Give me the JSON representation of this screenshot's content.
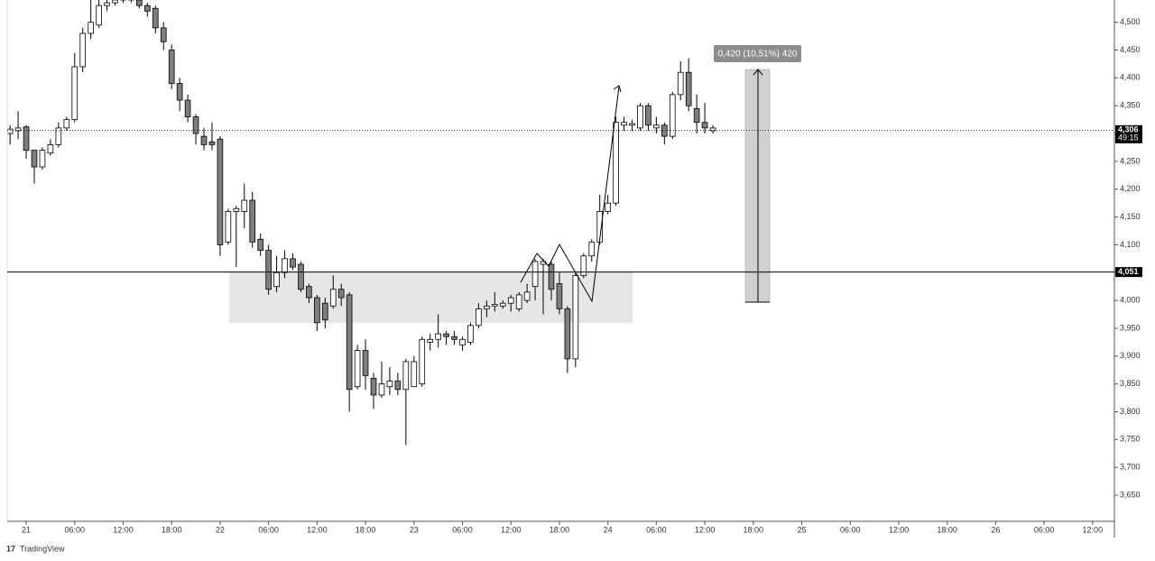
{
  "chart_data": {
    "type": "candlestick",
    "x": [
      -2,
      -1,
      0,
      1,
      2,
      3,
      4,
      5,
      6,
      7,
      8,
      9,
      10,
      11,
      12,
      13,
      14,
      15,
      16,
      17,
      18,
      19,
      20,
      21,
      22,
      23,
      24,
      25,
      26,
      27,
      28,
      29,
      30,
      31,
      32,
      33,
      34,
      35,
      36,
      37,
      38,
      39,
      40,
      41,
      42,
      43,
      44,
      45,
      46,
      47,
      48,
      49,
      50,
      51,
      52,
      53,
      54,
      55,
      56,
      57,
      58,
      59,
      60,
      61,
      62,
      63,
      64,
      65,
      66,
      67,
      68,
      69,
      70,
      71,
      72,
      73,
      74,
      75,
      76,
      77,
      78,
      79,
      80,
      81,
      82,
      83,
      84,
      85
    ],
    "open": [
      4300,
      4305,
      4312,
      4270,
      4240,
      4265,
      4280,
      4310,
      4325,
      4420,
      4480,
      4495,
      4530,
      4535,
      4540,
      4545,
      4540,
      4530,
      4525,
      4490,
      4450,
      4390,
      4360,
      4330,
      4295,
      4285,
      4290,
      4105,
      4160,
      4160,
      4180,
      4110,
      4090,
      4025,
      4050,
      4075,
      4065,
      4025,
      4005,
      3995,
      3990,
      4020,
      4010,
      3845,
      3910,
      3860,
      3830,
      3845,
      3855,
      3840,
      3845,
      3850,
      3925,
      3930,
      3940,
      3935,
      3920,
      3925,
      3955,
      3985,
      3990,
      3990,
      3995,
      3985,
      4000,
      4025,
      4065,
      4065,
      4030,
      3985,
      3895,
      4045,
      4080,
      4105,
      4160,
      4175,
      4315,
      4315,
      4310,
      4350,
      4310,
      4315,
      4295,
      4370,
      4410,
      4345,
      4320,
      4305
    ],
    "high": [
      4315,
      4340,
      4315,
      4270,
      4275,
      4290,
      4320,
      4330,
      4445,
      4490,
      4540,
      4540,
      4540,
      4545,
      4550,
      4550,
      4545,
      4535,
      4530,
      4500,
      4460,
      4400,
      4370,
      4335,
      4310,
      4320,
      4295,
      4165,
      4170,
      4210,
      4195,
      4120,
      4100,
      4080,
      4090,
      4085,
      4070,
      4030,
      4010,
      4005,
      4045,
      4030,
      4015,
      3920,
      3930,
      3870,
      3890,
      3880,
      3870,
      3895,
      3900,
      3935,
      3940,
      3975,
      3945,
      3945,
      3935,
      3960,
      3995,
      4000,
      4015,
      4000,
      4010,
      4015,
      4030,
      4075,
      4075,
      4070,
      4050,
      3990,
      4050,
      4085,
      4110,
      4190,
      4190,
      4330,
      4330,
      4325,
      4355,
      4355,
      4330,
      4320,
      4375,
      4430,
      4435,
      4370,
      4355,
      4315
    ],
    "low": [
      4280,
      4290,
      4255,
      4210,
      4235,
      4260,
      4275,
      4305,
      4320,
      4410,
      4470,
      4490,
      4520,
      4530,
      4535,
      4535,
      4525,
      4510,
      4480,
      4450,
      4380,
      4340,
      4320,
      4280,
      4270,
      4270,
      4080,
      4100,
      4060,
      4130,
      4095,
      4080,
      4010,
      4015,
      4040,
      4055,
      4015,
      3995,
      3945,
      3950,
      3985,
      3990,
      3800,
      3840,
      3840,
      3805,
      3825,
      3830,
      3830,
      3740,
      3845,
      3845,
      3910,
      3915,
      3920,
      3920,
      3910,
      3920,
      3950,
      3970,
      3980,
      3985,
      3980,
      3980,
      3995,
      4000,
      3975,
      4000,
      3975,
      3870,
      3880,
      4040,
      4070,
      4100,
      4155,
      4170,
      4305,
      4305,
      4305,
      4305,
      4300,
      4280,
      4290,
      4360,
      4340,
      4300,
      4300,
      4300
    ],
    "close": [
      4308,
      4310,
      4270,
      4240,
      4270,
      4280,
      4310,
      4325,
      4420,
      4480,
      4500,
      4530,
      4535,
      4540,
      4545,
      4540,
      4530,
      4520,
      4490,
      4465,
      4390,
      4360,
      4330,
      4300,
      4280,
      4280,
      4100,
      4160,
      4165,
      4180,
      4105,
      4090,
      4020,
      4050,
      4075,
      4060,
      4020,
      4005,
      3960,
      3965,
      4020,
      4005,
      3840,
      3910,
      3865,
      3830,
      3850,
      3855,
      3840,
      3890,
      3890,
      3930,
      3930,
      3940,
      3935,
      3930,
      3930,
      3955,
      3985,
      3990,
      3993,
      3995,
      4005,
      4010,
      4015,
      4070,
      4070,
      4020,
      3985,
      3895,
      4045,
      4080,
      4105,
      4160,
      4175,
      4320,
      4320,
      4318,
      4350,
      4315,
      4315,
      4295,
      4370,
      4410,
      4350,
      4320,
      4310,
      4310
    ],
    "up_color": "#ffffff",
    "down_color": "#7f7f7f",
    "xlim": [
      -2.35,
      134.7
    ],
    "ylim": [
      3603,
      4540
    ],
    "xticks": [
      {
        "value": 0,
        "label": "21"
      },
      {
        "value": 6,
        "label": "06:00"
      },
      {
        "value": 12,
        "label": "12:00"
      },
      {
        "value": 18,
        "label": "18:00"
      },
      {
        "value": 24,
        "label": "22"
      },
      {
        "value": 30,
        "label": "06:00"
      },
      {
        "value": 36,
        "label": "12:00"
      },
      {
        "value": 42,
        "label": "18:00"
      },
      {
        "value": 48,
        "label": "23"
      },
      {
        "value": 54,
        "label": "06:00"
      },
      {
        "value": 60,
        "label": "12:00"
      },
      {
        "value": 66,
        "label": "18:00"
      },
      {
        "value": 72,
        "label": "24"
      },
      {
        "value": 78,
        "label": "06:00"
      },
      {
        "value": 84,
        "label": "12:00"
      },
      {
        "value": 90,
        "label": "18:00"
      },
      {
        "value": 96,
        "label": "25"
      },
      {
        "value": 102,
        "label": "06:00"
      },
      {
        "value": 108,
        "label": "12:00"
      },
      {
        "value": 114,
        "label": "18:00"
      },
      {
        "value": 120,
        "label": "26"
      },
      {
        "value": 126,
        "label": "06:00"
      },
      {
        "value": 132,
        "label": "12:00"
      }
    ],
    "yticks": [
      {
        "value": 3650,
        "label": "3,650"
      },
      {
        "value": 3700,
        "label": "3,700"
      },
      {
        "value": 3750,
        "label": "3,750"
      },
      {
        "value": 3800,
        "label": "3,800"
      },
      {
        "value": 3850,
        "label": "3,850"
      },
      {
        "value": 3900,
        "label": "3,900"
      },
      {
        "value": 3950,
        "label": "3,950"
      },
      {
        "value": 4000,
        "label": "4,000"
      },
      {
        "value": 4050,
        "label": "4,050"
      },
      {
        "value": 4100,
        "label": "4,100"
      },
      {
        "value": 4150,
        "label": "4,150"
      },
      {
        "value": 4200,
        "label": "4,200"
      },
      {
        "value": 4250,
        "label": "4,250"
      },
      {
        "value": 4300,
        "label": "4,300"
      },
      {
        "value": 4350,
        "label": "4,350"
      },
      {
        "value": 4400,
        "label": "4,400"
      },
      {
        "value": 4450,
        "label": "4,450"
      },
      {
        "value": 4500,
        "label": "4,500"
      }
    ],
    "price_lines": [
      {
        "value": 4306,
        "label": "4,306",
        "style": "dotted"
      },
      {
        "value": 4051,
        "label": "4,051",
        "style": "solid"
      }
    ],
    "countdown": "49:15",
    "measure_label": "0,420 (10,51%) 420",
    "brand": "TradingView"
  }
}
